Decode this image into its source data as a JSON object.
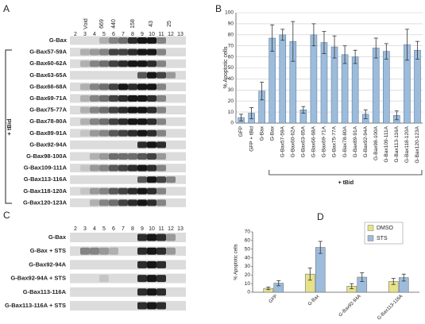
{
  "blot_a": {
    "panel": "A",
    "markers": [
      "Void",
      "669",
      "440",
      "158",
      "43",
      "25"
    ],
    "lanes": [
      2,
      3,
      4,
      5,
      6,
      7,
      8,
      9,
      10,
      11,
      12,
      13
    ],
    "rows": [
      "G-Bax",
      "G-Bax57-59A",
      "G-Bax60-62A",
      "G-Bax63-65A",
      "G-Bax66-68A",
      "G-Bax69-71A",
      "G-Bax75-77A",
      "G-Bax78-80A",
      "G-Bax89-91A",
      "G-Bax92-94A",
      "G-Bax98-100A",
      "G-Bax109-111A",
      "G-Bax113-116A",
      "G-Bax118-120A",
      "G-Bax120-123A"
    ],
    "group": "+ tBid"
  },
  "blot_c": {
    "panel": "C",
    "lanes": [
      2,
      3,
      4,
      5,
      6,
      7,
      8,
      9,
      10,
      11,
      12,
      13
    ],
    "rows": [
      "G-Bax",
      "G-Bax + STS",
      "G-Bax92-94A",
      "G-Bax92-94A + STS",
      "G-Bax113-116A",
      "G-Bax113-116A + STS"
    ]
  },
  "chart_data": [
    {
      "type": "bar",
      "panel": "B",
      "ylabel": "% Apoptotic cells",
      "categories": [
        "GFP",
        "GFP + tBid",
        "G-Bax",
        "G-Bax",
        "G-Bax57-59A",
        "G-Bax60-62A",
        "G-Bax63-65A",
        "G-Bax66-68A",
        "G-Bax69-71A",
        "G-Bax75-77A",
        "G-Bax78-80A",
        "G-Bax89-91A",
        "G-Bax92-94A",
        "G-Bax98-100A",
        "G-Bax109-111A",
        "G-Bax113-116A",
        "G-Bax118-120A",
        "G-Bax120-123A"
      ],
      "values": [
        5,
        9,
        29,
        77,
        80,
        74,
        12,
        80,
        73,
        69,
        62,
        60,
        8,
        68,
        65,
        7,
        71,
        66
      ],
      "errors": [
        3,
        5,
        8,
        12,
        5,
        18,
        3,
        10,
        10,
        10,
        8,
        6,
        4,
        9,
        7,
        4,
        14,
        8
      ],
      "color": "#9dbcdb",
      "group": "+ tBid",
      "ylim": [
        0,
        100
      ],
      "yticks": [
        0,
        10,
        20,
        30,
        40,
        50,
        60,
        70,
        80,
        90,
        100
      ],
      "grid": true
    },
    {
      "type": "groupedbar",
      "panel": "D",
      "ylabel": "% Apoptotic cells",
      "categories": [
        "GFP",
        "G-Bax",
        "G-Bax92-94A",
        "G-Bax113-116A"
      ],
      "series": [
        {
          "name": "DMSO",
          "color": "#e6e28a",
          "values": [
            4.5,
            21,
            7,
            12.5
          ],
          "errors": [
            1.5,
            7,
            3,
            3.5
          ]
        },
        {
          "name": "STS",
          "color": "#9dbcdb",
          "values": [
            10.5,
            52,
            17.5,
            17
          ],
          "errors": [
            3,
            7,
            5,
            4
          ]
        }
      ],
      "ylim": [
        0,
        70
      ],
      "yticks": [
        0,
        10,
        20,
        30,
        40,
        50,
        60,
        70
      ],
      "grid": false,
      "legend": "top-right"
    }
  ]
}
